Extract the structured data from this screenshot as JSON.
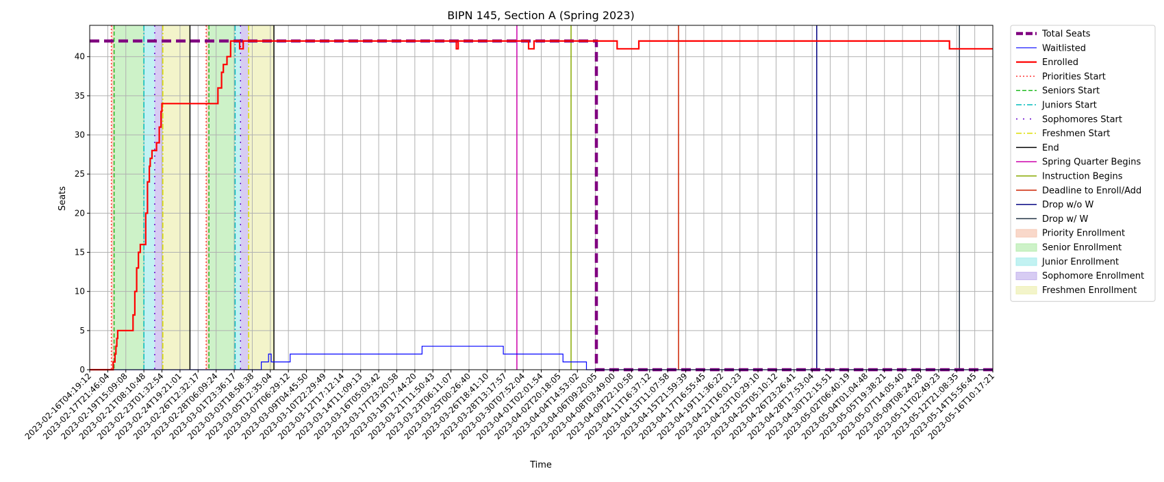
{
  "chart_data": {
    "type": "line",
    "title": "BIPN 145, Section A (Spring 2023)",
    "xlabel": "Time",
    "ylabel": "Seats",
    "xlim": [
      "2023-02-16T04:19:12",
      "2023-05-16T10:17:21"
    ],
    "ylim": [
      0,
      44
    ],
    "yticks": [
      0,
      5,
      10,
      15,
      20,
      25,
      30,
      35,
      40
    ],
    "grid": true,
    "legend_position": "outside-right",
    "xtick_labels": [
      "2023-02-16T04:19:12",
      "2023-02-17T21:46:04",
      "2023-02-19T15:09:08",
      "2023-02-21T08:10:48",
      "2023-02-23T01:32:54",
      "2023-02-24T19:21:01",
      "2023-02-26T12:32:17",
      "2023-02-28T06:09:24",
      "2023-03-01T23:36:17",
      "2023-03-03T18:58:38",
      "2023-03-05T12:35:04",
      "2023-03-07T06:29:12",
      "2023-03-09T04:45:50",
      "2023-03-10T22:29:49",
      "2023-03-12T17:12:14",
      "2023-03-14T11:09:13",
      "2023-03-16T05:03:42",
      "2023-03-17T23:20:58",
      "2023-03-19T17:44:20",
      "2023-03-21T11:50:43",
      "2023-03-23T06:11:07",
      "2023-03-25T00:26:40",
      "2023-03-26T18:41:10",
      "2023-03-28T13:17:57",
      "2023-03-30T07:52:04",
      "2023-04-01T02:01:54",
      "2023-04-02T20:18:05",
      "2023-04-04T14:53:02",
      "2023-04-06T09:20:05",
      "2023-04-08T03:49:00",
      "2023-04-09T22:10:58",
      "2023-04-11T16:37:12",
      "2023-04-13T11:07:58",
      "2023-04-15T21:59:39",
      "2023-04-17T16:55:45",
      "2023-04-19T11:36:22",
      "2023-04-21T16:01:23",
      "2023-04-23T10:29:10",
      "2023-04-25T05:10:12",
      "2023-04-26T23:26:41",
      "2023-04-28T17:53:04",
      "2023-04-30T12:15:51",
      "2023-05-02T06:40:19",
      "2023-05-04T01:04:48",
      "2023-05-05T19:38:21",
      "2023-05-07T14:05:40",
      "2023-05-09T08:24:28",
      "2023-05-11T02:49:23",
      "2023-05-12T21:08:35",
      "2023-05-14T15:56:45",
      "2023-05-16T10:17:21"
    ],
    "series": [
      {
        "name": "Total Seats",
        "color": "#800080",
        "style": "dashed-thick",
        "points": [
          [
            0,
            42
          ],
          [
            28.05,
            42
          ],
          [
            28.05,
            0
          ],
          [
            50,
            0
          ]
        ]
      },
      {
        "name": "Waitlisted",
        "color": "#0000ff",
        "style": "solid-thin",
        "points": [
          [
            0,
            0
          ],
          [
            9.5,
            0
          ],
          [
            9.5,
            1
          ],
          [
            9.9,
            1
          ],
          [
            9.9,
            2
          ],
          [
            10.05,
            2
          ],
          [
            10.05,
            1
          ],
          [
            11.1,
            1
          ],
          [
            11.1,
            2
          ],
          [
            18.4,
            2
          ],
          [
            18.4,
            3
          ],
          [
            22.9,
            3
          ],
          [
            22.9,
            2
          ],
          [
            26.2,
            2
          ],
          [
            26.2,
            1
          ],
          [
            27.5,
            1
          ],
          [
            27.5,
            0
          ],
          [
            50,
            0
          ]
        ]
      },
      {
        "name": "Enrolled",
        "color": "#ff0000",
        "style": "solid-thick",
        "points": [
          [
            0,
            0
          ],
          [
            1.3,
            0
          ],
          [
            1.3,
            1
          ],
          [
            1.4,
            1
          ],
          [
            1.4,
            2
          ],
          [
            1.45,
            2
          ],
          [
            1.45,
            3
          ],
          [
            1.5,
            3
          ],
          [
            1.5,
            4
          ],
          [
            1.55,
            4
          ],
          [
            1.55,
            5
          ],
          [
            2.4,
            5
          ],
          [
            2.4,
            7
          ],
          [
            2.5,
            7
          ],
          [
            2.5,
            10
          ],
          [
            2.6,
            10
          ],
          [
            2.6,
            13
          ],
          [
            2.7,
            13
          ],
          [
            2.7,
            15
          ],
          [
            2.8,
            15
          ],
          [
            2.8,
            16
          ],
          [
            3.1,
            16
          ],
          [
            3.1,
            20
          ],
          [
            3.2,
            20
          ],
          [
            3.2,
            24
          ],
          [
            3.3,
            24
          ],
          [
            3.3,
            26
          ],
          [
            3.35,
            26
          ],
          [
            3.35,
            27
          ],
          [
            3.45,
            27
          ],
          [
            3.45,
            28
          ],
          [
            3.6,
            28
          ],
          [
            3.7,
            28
          ],
          [
            3.7,
            29
          ],
          [
            3.85,
            29
          ],
          [
            3.85,
            31
          ],
          [
            3.95,
            31
          ],
          [
            3.95,
            33
          ],
          [
            4.0,
            33
          ],
          [
            4.0,
            34
          ],
          [
            7.1,
            34
          ],
          [
            7.1,
            36
          ],
          [
            7.3,
            36
          ],
          [
            7.3,
            38
          ],
          [
            7.4,
            38
          ],
          [
            7.4,
            39
          ],
          [
            7.6,
            39
          ],
          [
            7.6,
            40
          ],
          [
            7.8,
            40
          ],
          [
            7.8,
            42
          ],
          [
            8.3,
            42
          ],
          [
            8.3,
            41
          ],
          [
            8.5,
            41
          ],
          [
            8.5,
            42
          ],
          [
            20.3,
            42
          ],
          [
            20.3,
            41
          ],
          [
            20.4,
            41
          ],
          [
            20.4,
            42
          ],
          [
            24.3,
            42
          ],
          [
            24.3,
            41
          ],
          [
            24.6,
            41
          ],
          [
            24.6,
            42
          ],
          [
            29.2,
            42
          ],
          [
            29.2,
            41
          ],
          [
            30.4,
            41
          ],
          [
            30.4,
            42
          ],
          [
            47.6,
            42
          ],
          [
            47.6,
            41
          ],
          [
            50,
            41
          ]
        ]
      }
    ],
    "shaded_regions": [
      {
        "name": "Priority Enrollment",
        "color": "#f6c8b4",
        "ranges": [
          [
            1.2,
            1.35
          ],
          [
            6.45,
            6.6
          ]
        ]
      },
      {
        "name": "Senior Enrollment",
        "color": "#b8ecb0",
        "ranges": [
          [
            1.35,
            3.0
          ],
          [
            6.6,
            8.05
          ]
        ]
      },
      {
        "name": "Junior Enrollment",
        "color": "#a8ecec",
        "ranges": [
          [
            3.0,
            3.6
          ],
          [
            8.05,
            8.35
          ]
        ]
      },
      {
        "name": "Sophomore Enrollment",
        "color": "#c6b6ee",
        "ranges": [
          [
            3.6,
            4.05
          ],
          [
            8.35,
            8.8
          ]
        ]
      },
      {
        "name": "Freshmen Enrollment",
        "color": "#eef0b4",
        "ranges": [
          [
            4.05,
            5.55
          ],
          [
            8.8,
            10.2
          ]
        ]
      }
    ],
    "vertical_lines": [
      {
        "name": "Priorities Start",
        "color": "#ff3333",
        "style": "dotted",
        "x": [
          1.2,
          6.45
        ]
      },
      {
        "name": "Seniors Start",
        "color": "#22bb22",
        "style": "dashed",
        "x": [
          1.35,
          6.6
        ]
      },
      {
        "name": "Juniors Start",
        "color": "#00bbbb",
        "style": "dashdot",
        "x": [
          3.0,
          8.05
        ]
      },
      {
        "name": "Sophomores Start",
        "color": "#6600cc",
        "style": "loosedot",
        "x": [
          3.6,
          8.35
        ]
      },
      {
        "name": "Freshmen Start",
        "color": "#dddd00",
        "style": "dashdot",
        "x": [
          4.05,
          8.8
        ]
      },
      {
        "name": "End",
        "color": "#000000",
        "style": "solid",
        "x": [
          5.55,
          10.2
        ]
      },
      {
        "name": "Spring Quarter Begins",
        "color": "#cc00aa",
        "style": "solid",
        "x": [
          23.65
        ]
      },
      {
        "name": "Instruction Begins",
        "color": "#88aa00",
        "style": "solid",
        "x": [
          26.65
        ]
      },
      {
        "name": "Deadline to Enroll/Add",
        "color": "#cc2200",
        "style": "solid",
        "x": [
          32.6
        ]
      },
      {
        "name": "Drop w/o W",
        "color": "#000080",
        "style": "solid",
        "x": [
          40.25
        ]
      },
      {
        "name": "Drop w/ W",
        "color": "#223344",
        "style": "solid",
        "x": [
          48.15
        ]
      }
    ],
    "legend": [
      "Total Seats",
      "Waitlisted",
      "Enrolled",
      "Priorities Start",
      "Seniors Start",
      "Juniors Start",
      "Sophomores Start",
      "Freshmen Start",
      "End",
      "Spring Quarter Begins",
      "Instruction Begins",
      "Deadline to Enroll/Add",
      "Drop w/o W",
      "Drop w/ W",
      "Priority Enrollment",
      "Senior Enrollment",
      "Junior Enrollment",
      "Sophomore Enrollment",
      "Freshmen Enrollment"
    ]
  }
}
